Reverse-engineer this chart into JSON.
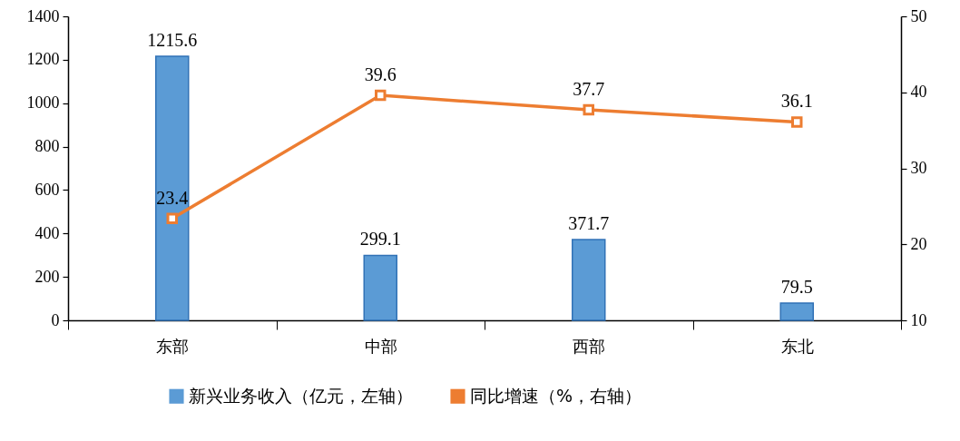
{
  "chart_data": {
    "type": "bar",
    "categories": [
      "东部",
      "中部",
      "西部",
      "东北"
    ],
    "series": [
      {
        "name": "新兴业务收入（亿元，左轴）",
        "color": "#5b9bd5",
        "values": [
          1215.6,
          299.1,
          371.7,
          79.5
        ]
      },
      {
        "name": "同比增速（%，右轴）",
        "type": "line",
        "axis": "y2",
        "color": "#ed7d31",
        "values": [
          23.4,
          39.6,
          37.7,
          36.1
        ]
      }
    ],
    "ylim": [
      0,
      1400
    ],
    "yticks": [
      0,
      200,
      400,
      600,
      800,
      1000,
      1200,
      1400
    ],
    "y2lim": [
      10,
      50
    ],
    "y2ticks": [
      10,
      20,
      30,
      40,
      50
    ],
    "marker": "square",
    "line_style": "solid",
    "data_labels": true,
    "legend": "bottom",
    "grid": false
  }
}
